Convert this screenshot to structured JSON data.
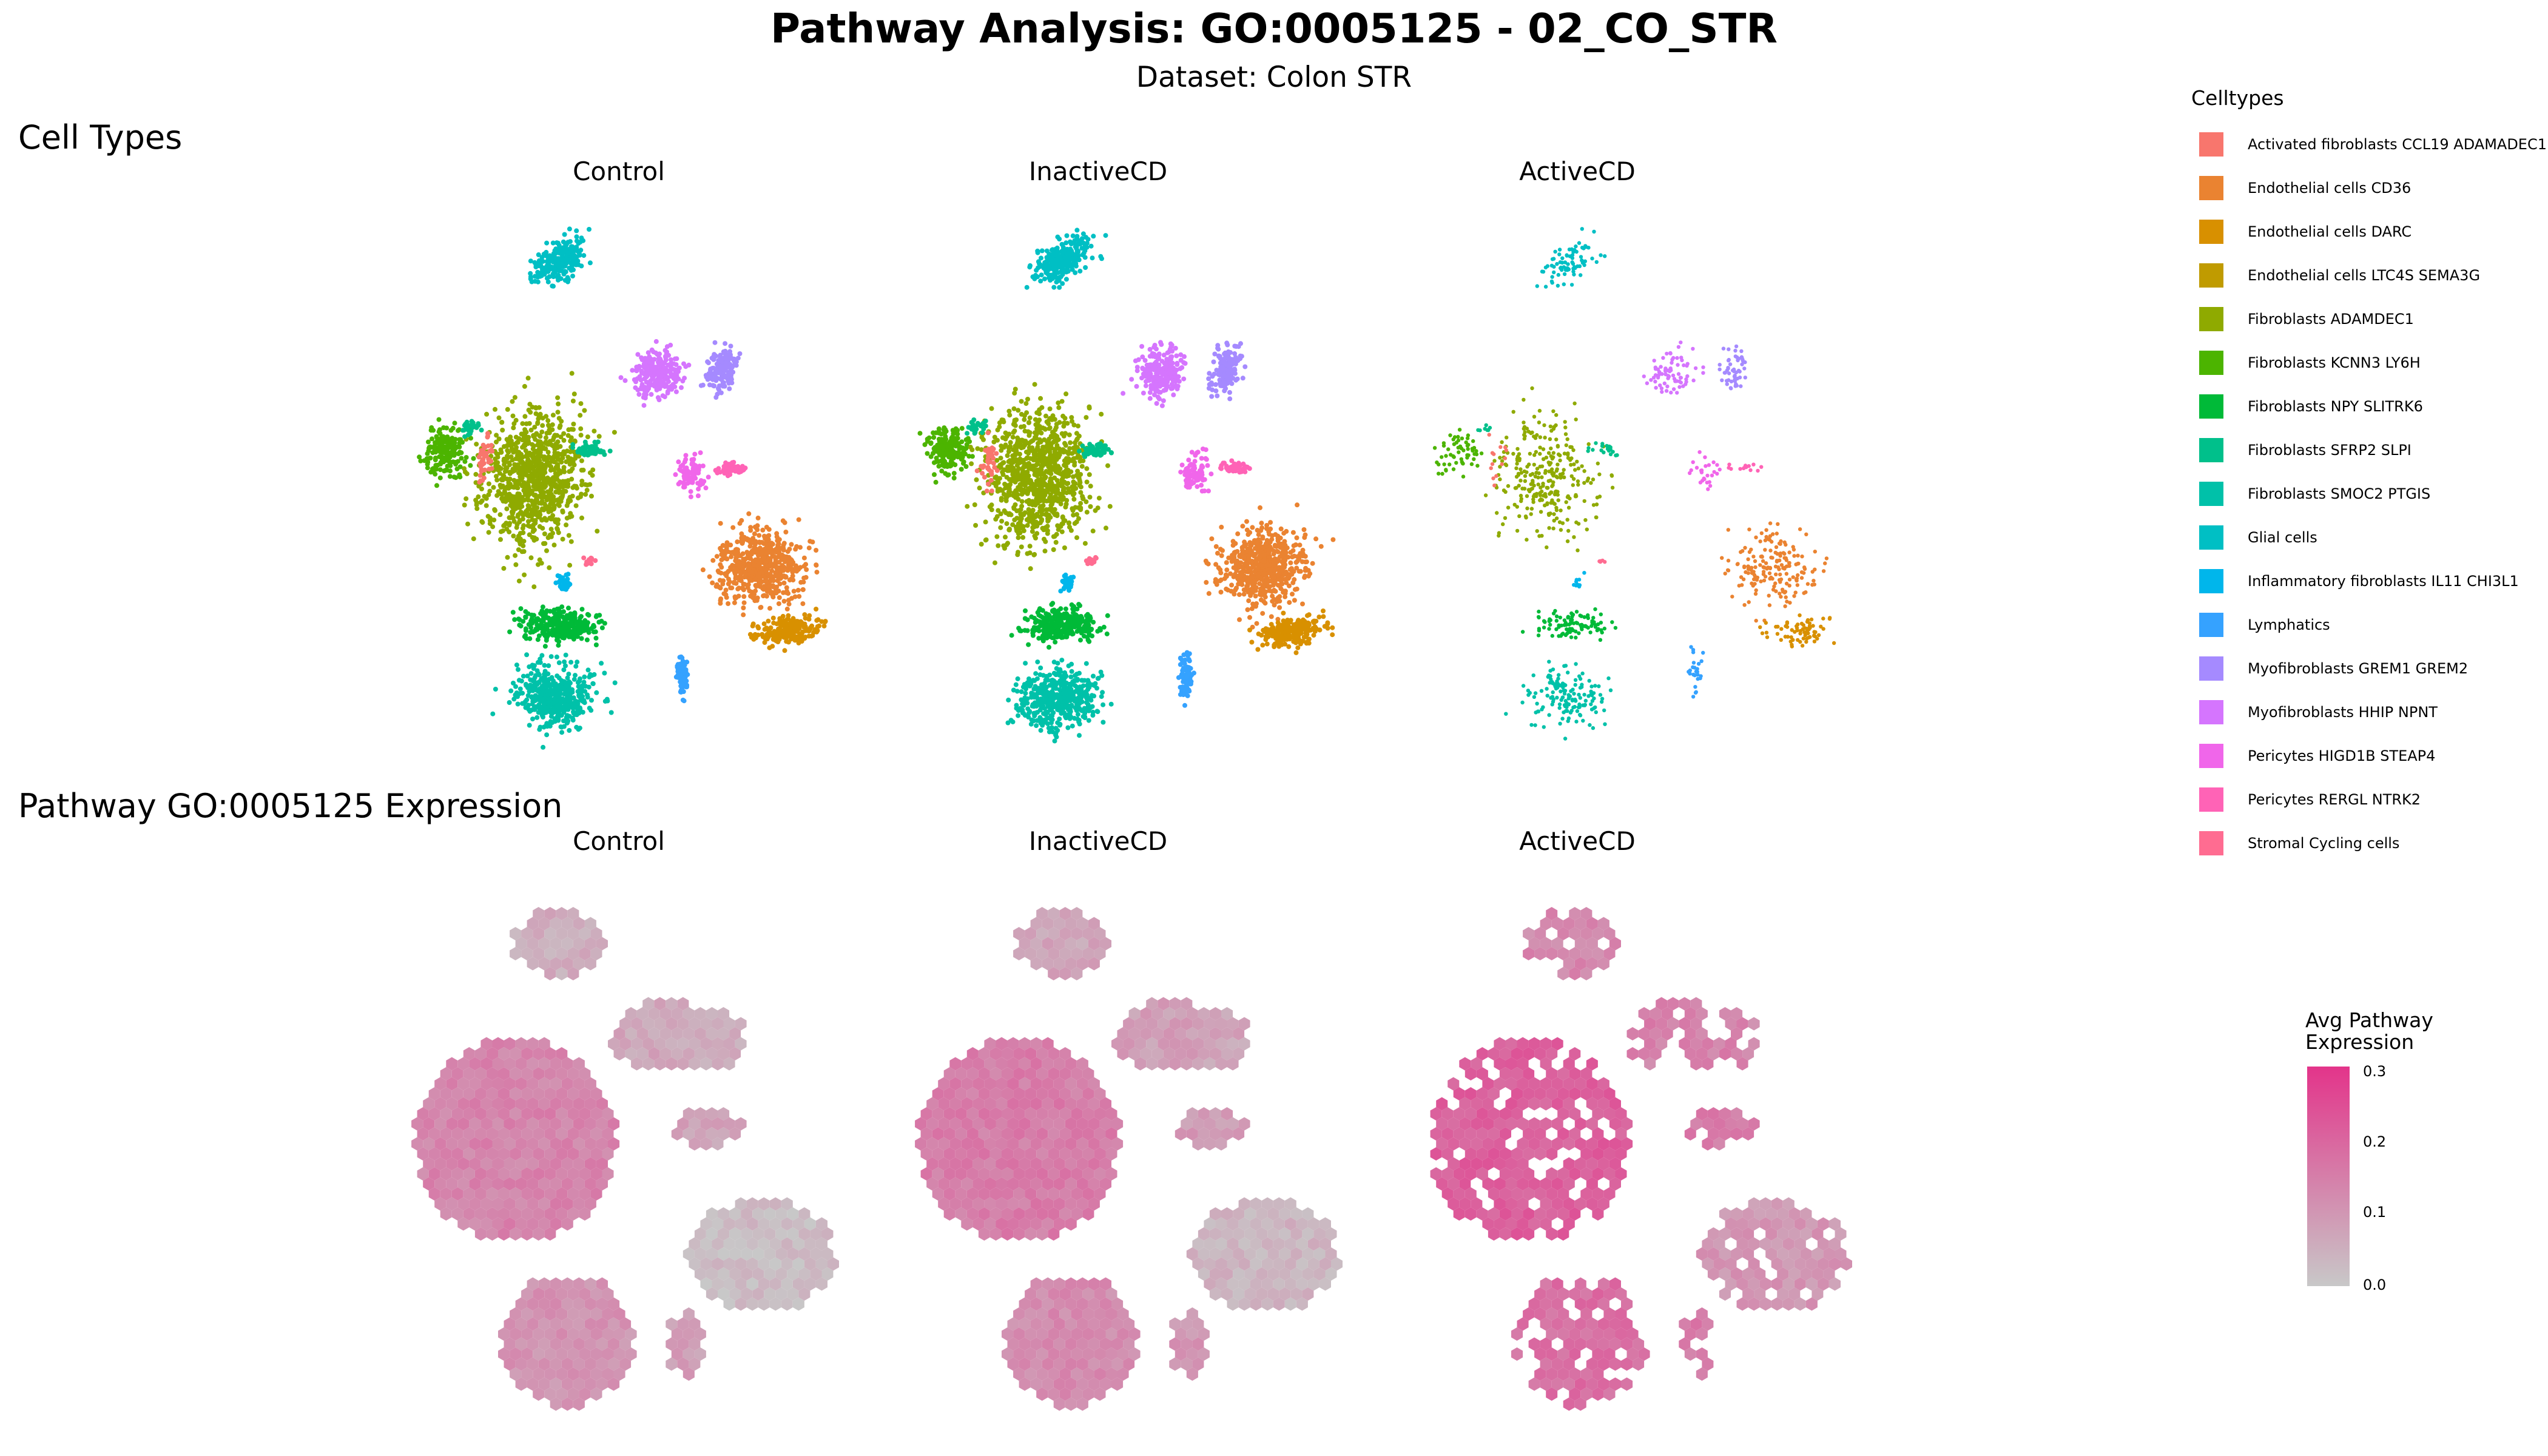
{
  "title": "Pathway Analysis: GO:0005125 - 02_CO_STR",
  "subtitle": "Dataset: Colon STR",
  "sections": {
    "top": "Cell Types",
    "bottom": "Pathway GO:0005125 Expression"
  },
  "facets": [
    "Control",
    "InactiveCD",
    "ActiveCD"
  ],
  "legend": {
    "title": "Celltypes",
    "items": [
      {
        "label": "Activated fibroblasts CCL19 ADAMADEC1",
        "color": "#F8766D"
      },
      {
        "label": "Endothelial cells CD36",
        "color": "#EA8331"
      },
      {
        "label": "Endothelial cells DARC",
        "color": "#D89000"
      },
      {
        "label": "Endothelial cells LTC4S SEMA3G",
        "color": "#C09B00"
      },
      {
        "label": "Fibroblasts ADAMDEC1",
        "color": "#8FAA00"
      },
      {
        "label": "Fibroblasts KCNN3 LY6H",
        "color": "#4CB400"
      },
      {
        "label": "Fibroblasts NPY SLITRK6",
        "color": "#00BA38"
      },
      {
        "label": "Fibroblasts SFRP2 SLPI",
        "color": "#00C08B"
      },
      {
        "label": "Fibroblasts SMOC2 PTGIS",
        "color": "#00C1A9"
      },
      {
        "label": "Glial cells",
        "color": "#00BFC4"
      },
      {
        "label": "Inflammatory fibroblasts IL11 CHI3L1",
        "color": "#00B6EB"
      },
      {
        "label": "Lymphatics",
        "color": "#35A2FF"
      },
      {
        "label": "Myofibroblasts GREM1 GREM2",
        "color": "#A58AFF"
      },
      {
        "label": "Myofibroblasts HHIP NPNT",
        "color": "#D575FE"
      },
      {
        "label": "Pericytes HIGD1B STEAP4",
        "color": "#F066EA"
      },
      {
        "label": "Pericytes RERGL NTRK2",
        "color": "#FF63B6"
      },
      {
        "label": "Stromal Cycling cells",
        "color": "#FF6C91"
      }
    ]
  },
  "colorbar": {
    "title": [
      "Avg Pathway",
      "Expression"
    ],
    "ticks": [
      "0.3",
      "0.2",
      "0.1",
      "0.0"
    ],
    "low_color": "#C8C8C8",
    "high_color": "#E3348A"
  },
  "chart_data": [
    {
      "type": "scatter",
      "description_panel": "cell-type UMAP",
      "facets": [
        "Control",
        "InactiveCD",
        "ActiveCD"
      ],
      "color_by": "Celltypes",
      "clusters": [
        {
          "name": "Glial cells",
          "umap_center": [
            -1.0,
            9.0
          ]
        },
        {
          "name": "Fibroblasts ADAMDEC1",
          "umap_center": [
            -1.5,
            1.5
          ]
        },
        {
          "name": "Fibroblasts KCNN3 LY6H",
          "umap_center": [
            -3.5,
            1.0
          ]
        },
        {
          "name": "Myofibroblasts HHIP NPNT",
          "umap_center": [
            3.5,
            4.0
          ]
        },
        {
          "name": "Myofibroblasts GREM1 GREM2",
          "umap_center": [
            5.0,
            3.8
          ]
        },
        {
          "name": "Pericytes HIGD1B STEAP4",
          "umap_center": [
            4.2,
            0.8
          ]
        },
        {
          "name": "Endothelial cells CD36",
          "umap_center": [
            6.5,
            -1.5
          ]
        },
        {
          "name": "Endothelial cells DARC",
          "umap_center": [
            7.5,
            -3.0
          ]
        },
        {
          "name": "Fibroblasts NPY SLITRK6",
          "umap_center": [
            -0.5,
            -3.5
          ]
        },
        {
          "name": "Fibroblasts SMOC2 PTGIS",
          "umap_center": [
            -1.0,
            -5.5
          ]
        },
        {
          "name": "Lymphatics",
          "umap_center": [
            3.5,
            -5.0
          ]
        },
        {
          "name": "Fibroblasts SFRP2 SLPI",
          "umap_center": [
            1.0,
            1.5
          ]
        }
      ]
    },
    {
      "type": "heatmap",
      "description_panel": "hexbin pathway expression",
      "facets": [
        "Control",
        "InactiveCD",
        "ActiveCD"
      ],
      "value_name": "Avg Pathway Expression",
      "range": [
        0.0,
        0.3
      ]
    }
  ]
}
